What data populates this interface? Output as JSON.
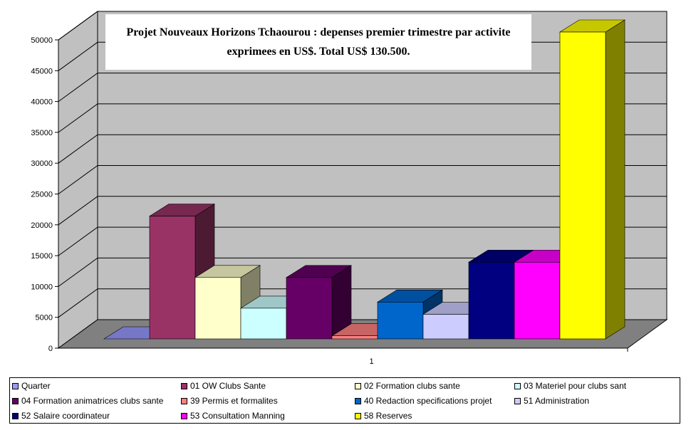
{
  "chart_data": {
    "type": "bar",
    "title": "Projet Nouveaux Horizons Tchaourou : depenses premier trimestre par activite exprimees en US$. Total US$ 130.500.",
    "categories": [
      "1"
    ],
    "ylim": [
      0,
      50000
    ],
    "yticks": [
      "0",
      "5000",
      "10000",
      "15000",
      "20000",
      "25000",
      "30000",
      "35000",
      "40000",
      "45000",
      "50000"
    ],
    "grid": true,
    "legend_position": "bottom",
    "series": [
      {
        "name": "Quarter",
        "values": [
          0
        ],
        "color": "#9999ff"
      },
      {
        "name": "01 OW Clubs Sante",
        "values": [
          20000
        ],
        "color": "#993366"
      },
      {
        "name": "02 Formation clubs sante",
        "values": [
          10000
        ],
        "color": "#ffffcc"
      },
      {
        "name": "03 Materiel pour clubs sant",
        "values": [
          5000
        ],
        "color": "#ccffff"
      },
      {
        "name": "04 Formation animatrices clubs sante",
        "values": [
          10000
        ],
        "color": "#660066"
      },
      {
        "name": "39 Permis et formalites",
        "values": [
          500
        ],
        "color": "#ff8080"
      },
      {
        "name": "40 Redaction specifications projet",
        "values": [
          6000
        ],
        "color": "#0066cc"
      },
      {
        "name": "51 Administration",
        "values": [
          4000
        ],
        "color": "#ccccff"
      },
      {
        "name": "52 Salaire coordinateur",
        "values": [
          12500
        ],
        "color": "#000080"
      },
      {
        "name": "53 Consultation Manning",
        "values": [
          12500
        ],
        "color": "#ff00ff"
      },
      {
        "name": "58 Reserves",
        "values": [
          50000
        ],
        "color": "#ffff00"
      }
    ]
  }
}
